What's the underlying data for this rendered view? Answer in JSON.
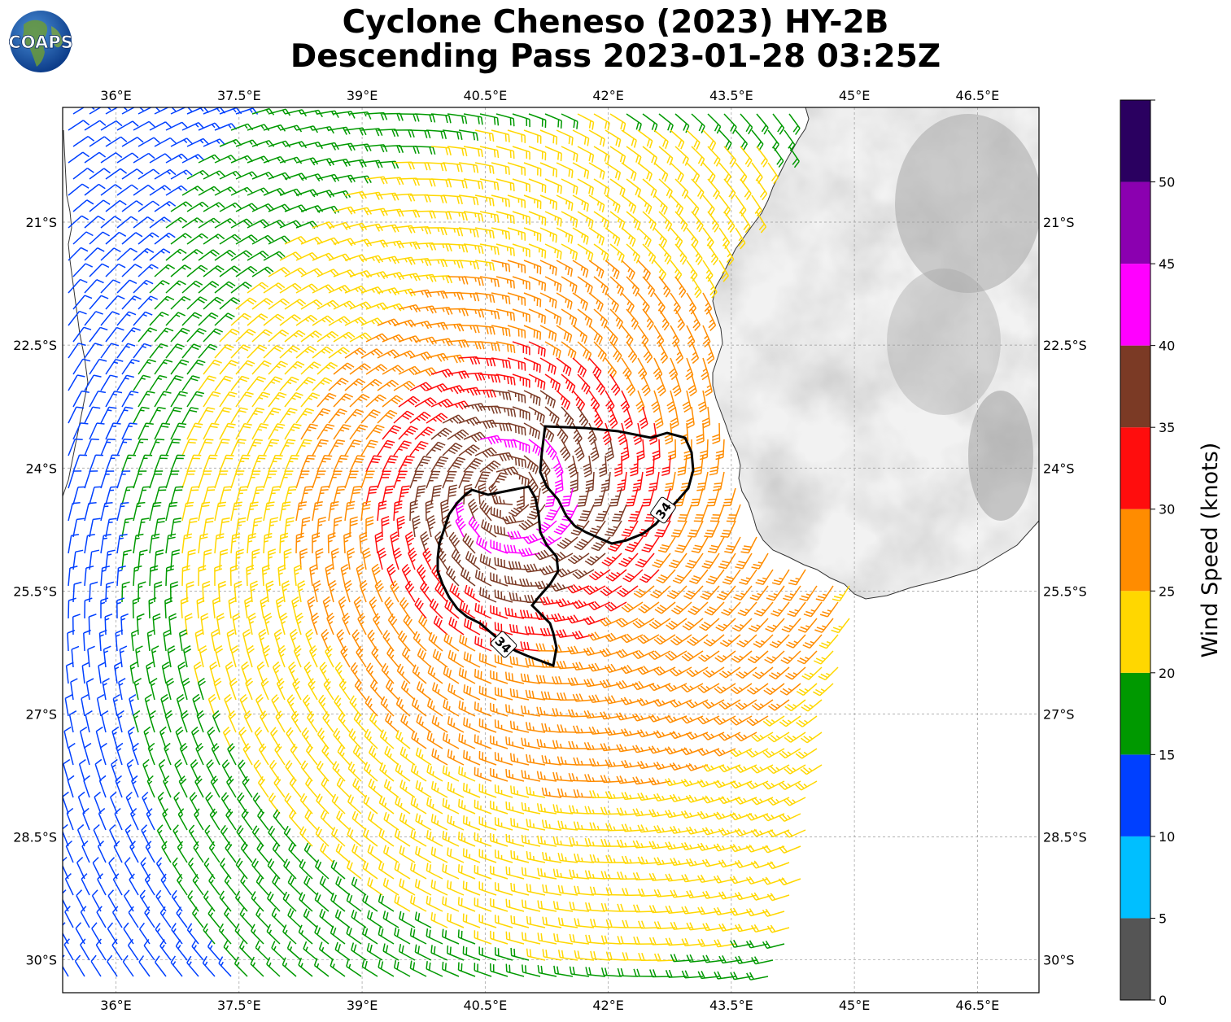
{
  "title_line1": "Cyclone Cheneso (2023) HY-2B",
  "title_line2": "Descending Pass 2023-01-28 03:25Z",
  "logo_text": "COAPS",
  "lon_ticks": [
    "36°E",
    "37.5°E",
    "39°E",
    "40.5°E",
    "42°E",
    "43.5°E",
    "45°E",
    "46.5°E"
  ],
  "lat_ticks": [
    "21°S",
    "22.5°S",
    "24°S",
    "25.5°S",
    "27°S",
    "28.5°S",
    "30°S"
  ],
  "map_extent": {
    "lon_min": 35.35,
    "lon_max": 47.25,
    "lat_min": -30.4,
    "lat_max": -19.6
  },
  "contour_label": "34",
  "colorbar": {
    "label": "Wind Speed (knots)",
    "ticks": [
      0,
      5,
      10,
      15,
      20,
      25,
      30,
      35,
      40,
      45,
      50
    ],
    "bins": [
      {
        "min": 0,
        "max": 5,
        "color": "#555555"
      },
      {
        "min": 5,
        "max": 10,
        "color": "#00bfff"
      },
      {
        "min": 10,
        "max": 15,
        "color": "#0040ff"
      },
      {
        "min": 15,
        "max": 20,
        "color": "#009900"
      },
      {
        "min": 20,
        "max": 25,
        "color": "#ffd700"
      },
      {
        "min": 25,
        "max": 30,
        "color": "#ff8c00"
      },
      {
        "min": 30,
        "max": 35,
        "color": "#ff0d0d"
      },
      {
        "min": 35,
        "max": 40,
        "color": "#7b3a25"
      },
      {
        "min": 40,
        "max": 45,
        "color": "#ff00ff"
      },
      {
        "min": 45,
        "max": 50,
        "color": "#8b00b0"
      },
      {
        "min": 50,
        "max": 55,
        "color": "#2a0060"
      }
    ]
  },
  "storm_center": {
    "lon": 40.8,
    "lat": -24.3
  }
}
